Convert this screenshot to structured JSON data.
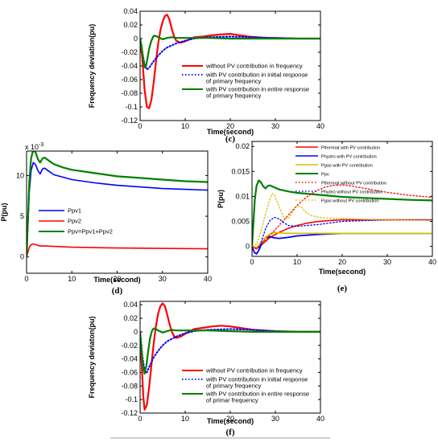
{
  "chart_data": [
    {
      "id": "c",
      "type": "line",
      "panel_label": "(c)",
      "xlabel": "Time(second)",
      "ylabel": "Frequency deviation(pu)",
      "xlim": [
        0,
        40
      ],
      "ylim": [
        -0.12,
        0.04
      ],
      "xticks": [
        0,
        10,
        20,
        30,
        40
      ],
      "yticks": [
        -0.12,
        -0.1,
        -0.08,
        -0.06,
        -0.04,
        -0.02,
        0,
        0.02,
        0.04
      ],
      "ytick_labels": [
        "-0.12",
        "-0.1",
        "-0.08",
        "-0.06",
        "-0.04",
        "-0.02",
        "0",
        "0.02",
        "0.04"
      ],
      "legend_position": "right",
      "series": [
        {
          "name": "without PV contribution in frequency",
          "color": "#ff0000",
          "style": "solid",
          "width": 2.2,
          "x": [
            0,
            0.5,
            1.0,
            1.5,
            2.0,
            2.5,
            3.0,
            3.5,
            4.0,
            4.5,
            5.0,
            5.5,
            6.0,
            6.5,
            7.0,
            7.5,
            8.0,
            9.0,
            10,
            11,
            12,
            14,
            16,
            18,
            20,
            22,
            24,
            26,
            28,
            30,
            35,
            40
          ],
          "y": [
            0,
            -0.03,
            -0.075,
            -0.1,
            -0.102,
            -0.09,
            -0.065,
            -0.035,
            -0.008,
            0.012,
            0.025,
            0.033,
            0.035,
            0.028,
            0.015,
            0.004,
            -0.003,
            -0.006,
            -0.004,
            -0.001,
            0.002,
            0.003,
            0.005,
            0.006,
            0.007,
            0.005,
            0.003,
            0.002,
            0.001,
            0.001,
            0,
            0
          ]
        },
        {
          "name": "with PV contribution in initial response of primary frequency",
          "label_lines": [
            "with PV contribution in initial response",
            "of primary frequency"
          ],
          "color": "#0000ff",
          "style": "dotted",
          "width": 2,
          "x": [
            0,
            0.5,
            1.0,
            1.5,
            2.0,
            2.5,
            3.0,
            4.0,
            5.0,
            6.0,
            8.0,
            10,
            12,
            15,
            20,
            25,
            30,
            35,
            40
          ],
          "y": [
            0,
            -0.02,
            -0.038,
            -0.045,
            -0.043,
            -0.038,
            -0.033,
            -0.025,
            -0.018,
            -0.013,
            -0.007,
            -0.003,
            0,
            0.002,
            0.003,
            0.002,
            0.001,
            0,
            0
          ]
        },
        {
          "name": "with PV contribution in entire response of primary frequency",
          "label_lines": [
            "with PV contribution in entire response",
            "of primary frequency"
          ],
          "color": "#008000",
          "style": "solid",
          "width": 2.2,
          "x": [
            0,
            0.3,
            0.7,
            1.0,
            1.3,
            1.6,
            2.0,
            2.5,
            3.0,
            3.5,
            4.0,
            5.0,
            6.0,
            7.0,
            8.0,
            10,
            12,
            15,
            20,
            25,
            30,
            40
          ],
          "y": [
            0,
            -0.01,
            -0.03,
            -0.042,
            -0.04,
            -0.03,
            -0.015,
            -0.003,
            0.004,
            0.004,
            0.002,
            -0.001,
            0.001,
            0.002,
            0.001,
            0.001,
            0.001,
            0.001,
            0,
            0,
            0,
            0
          ]
        }
      ]
    },
    {
      "id": "d",
      "type": "line",
      "panel_label": "(d)",
      "xlabel": "Time(second)",
      "ylabel": "P(pu)",
      "exponent_label": "x 10",
      "exponent_power": "-3",
      "xlim": [
        0,
        40
      ],
      "ylim": [
        -2,
        13
      ],
      "xticks": [
        0,
        10,
        20,
        30,
        40
      ],
      "yticks": [
        0,
        5,
        10
      ],
      "ytick_labels": [
        "0",
        "5",
        "10"
      ],
      "legend_position": "left",
      "series": [
        {
          "name": "Ppv1",
          "color": "#0000ff",
          "style": "solid",
          "width": 1.6,
          "x": [
            0,
            0.3,
            0.6,
            1.0,
            1.5,
            2.0,
            2.5,
            3.0,
            3.5,
            4.0,
            5.0,
            6.0,
            8.0,
            10,
            15,
            20,
            25,
            30,
            35,
            40
          ],
          "y": [
            0,
            4,
            8,
            10.6,
            11.6,
            11.3,
            10.6,
            10.2,
            10.8,
            10.9,
            10.5,
            10.1,
            9.8,
            9.5,
            9.1,
            8.8,
            8.6,
            8.4,
            8.3,
            8.2
          ]
        },
        {
          "name": "Ppv2",
          "color": "#ff0000",
          "style": "solid",
          "width": 1.6,
          "x": [
            0,
            0.3,
            0.6,
            1.0,
            1.5,
            2.0,
            3.0,
            4.0,
            6.0,
            10,
            15,
            20,
            30,
            40
          ],
          "y": [
            0,
            0.6,
            1.2,
            1.5,
            1.6,
            1.5,
            1.35,
            1.35,
            1.3,
            1.2,
            1.15,
            1.1,
            1.05,
            1.0
          ]
        },
        {
          "name": "Ppv=Ppv1+Ppv2",
          "color": "#008000",
          "style": "solid",
          "width": 2.2,
          "x": [
            0,
            0.3,
            0.6,
            1.0,
            1.5,
            2.0,
            2.5,
            3.0,
            3.5,
            4.0,
            5.0,
            6.0,
            8.0,
            10,
            15,
            20,
            25,
            30,
            35,
            40
          ],
          "y": [
            0,
            4.6,
            9.2,
            12.1,
            13.2,
            12.8,
            12.0,
            11.6,
            12.1,
            12.2,
            11.8,
            11.4,
            11.0,
            10.7,
            10.3,
            9.9,
            9.7,
            9.5,
            9.3,
            9.2
          ]
        }
      ]
    },
    {
      "id": "e",
      "type": "line",
      "panel_label": "(e)",
      "xlabel": "Time(second)",
      "ylabel": "P(pu)",
      "xlim": [
        0,
        40
      ],
      "ylim": [
        -0.002,
        0.021
      ],
      "xticks": [
        0,
        10,
        20,
        30,
        40
      ],
      "yticks": [
        0,
        0.005,
        0.01,
        0.015,
        0.02
      ],
      "ytick_labels": [
        "0",
        "0.005",
        "0.01",
        "0.015",
        "0.02"
      ],
      "legend_position": "top",
      "series": [
        {
          "name": "Pthermal with PV contribution",
          "color": "#ff0000",
          "style": "solid",
          "width": 1.6,
          "x": [
            0,
            1,
            2,
            3,
            4,
            6,
            8,
            10,
            12,
            14,
            16,
            18,
            20,
            25,
            30,
            35,
            40
          ],
          "y": [
            0,
            -0.0005,
            0.0002,
            0.001,
            0.0018,
            0.0028,
            0.0036,
            0.0042,
            0.0046,
            0.0049,
            0.0051,
            0.0052,
            0.0053,
            0.0053,
            0.0053,
            0.0053,
            0.0053
          ]
        },
        {
          "name": "Phydro with PV contribution",
          "color": "#0000ff",
          "style": "solid",
          "width": 1.8,
          "x": [
            0,
            0.5,
            1.0,
            1.5,
            2.0,
            2.5,
            3.0,
            4.0,
            5.0,
            6.0,
            8.0,
            10,
            15,
            20,
            25,
            30,
            35,
            40
          ],
          "y": [
            0,
            -0.0012,
            -0.0015,
            -0.0008,
            0.0002,
            0.0012,
            0.0018,
            0.0019,
            0.0017,
            0.0016,
            0.0018,
            0.0021,
            0.0024,
            0.0026,
            0.0026,
            0.0026,
            0.0026,
            0.0026
          ]
        },
        {
          "name": "Pgas with PV contribution",
          "color": "#d4c200",
          "style": "solid",
          "width": 1.8,
          "x": [
            0,
            1,
            2,
            3,
            4,
            5,
            6,
            8,
            10,
            15,
            20,
            25,
            30,
            40
          ],
          "y": [
            0,
            -0.0003,
            0.0008,
            0.0018,
            0.0025,
            0.0028,
            0.0027,
            0.0026,
            0.0026,
            0.0026,
            0.0026,
            0.0026,
            0.0026,
            0.0026
          ]
        },
        {
          "name": "Ppv",
          "color": "#008000",
          "style": "solid",
          "width": 2.2,
          "x": [
            0,
            0.3,
            0.6,
            1.0,
            1.5,
            2.0,
            2.5,
            3.0,
            3.5,
            4.0,
            5.0,
            6.0,
            8.0,
            10,
            15,
            20,
            25,
            30,
            35,
            40
          ],
          "y": [
            0,
            0.0046,
            0.0092,
            0.0121,
            0.0132,
            0.0128,
            0.012,
            0.0116,
            0.0121,
            0.0122,
            0.0118,
            0.0114,
            0.011,
            0.0107,
            0.0103,
            0.0099,
            0.0097,
            0.0095,
            0.0093,
            0.0092
          ]
        },
        {
          "name": "Pthermal without PV contribution",
          "color": "#ff0000",
          "style": "dotted",
          "width": 1.3,
          "x": [
            0,
            1,
            2,
            4,
            6,
            8,
            10,
            12,
            14,
            16,
            18,
            20,
            22,
            25,
            30,
            35,
            40
          ],
          "y": [
            0,
            -0.0004,
            0.0004,
            0.0022,
            0.0042,
            0.0062,
            0.0082,
            0.0098,
            0.011,
            0.0118,
            0.0122,
            0.0123,
            0.0121,
            0.0116,
            0.0108,
            0.0102,
            0.0098
          ]
        },
        {
          "name": "Phydro without PV contribution",
          "color": "#0000ff",
          "style": "dotted",
          "width": 1.3,
          "x": [
            0,
            0.5,
            1.0,
            1.5,
            2.0,
            3.0,
            4.0,
            5.0,
            6.0,
            7.0,
            8.0,
            10,
            15,
            20,
            30,
            40
          ],
          "y": [
            0,
            -0.0012,
            -0.0016,
            -0.0008,
            0.0008,
            0.0035,
            0.0052,
            0.0058,
            0.0055,
            0.0048,
            0.0042,
            0.004,
            0.0044,
            0.005,
            0.0053,
            0.0053
          ]
        },
        {
          "name": "Pgas without PV contribution",
          "color": "#d4c200",
          "style": "dotted",
          "width": 1.3,
          "x": [
            0,
            1,
            2,
            3,
            4,
            4.5,
            5,
            6,
            7,
            8,
            9,
            10,
            11,
            12,
            13,
            15,
            18,
            20,
            25,
            30,
            40
          ],
          "y": [
            0,
            0.0004,
            0.003,
            0.0065,
            0.0095,
            0.0106,
            0.0102,
            0.008,
            0.0058,
            0.0056,
            0.0068,
            0.0081,
            0.0078,
            0.0068,
            0.0062,
            0.0058,
            0.0056,
            0.0056,
            0.0054,
            0.0053,
            0.0052
          ]
        }
      ]
    },
    {
      "id": "f",
      "type": "line",
      "panel_label": "(f)",
      "xlabel": "Time(second)",
      "ylabel": "Frequency deviaton(pu)",
      "xlim": [
        0,
        40
      ],
      "ylim": [
        -0.12,
        0.045
      ],
      "xticks": [
        0,
        10,
        20,
        30,
        40
      ],
      "yticks": [
        -0.12,
        -0.1,
        -0.08,
        -0.06,
        -0.04,
        -0.02,
        0,
        0.02,
        0.04
      ],
      "ytick_labels": [
        "-0.12",
        "-0.1",
        "-0.08",
        "-0.06",
        "-0.04",
        "-0.02",
        "0",
        "0.02",
        "0.04"
      ],
      "legend_position": "right",
      "series": [
        {
          "name": "without PV contribution in frequency",
          "color": "#ff0000",
          "style": "solid",
          "width": 2.2,
          "x": [
            0,
            0.3,
            0.7,
            1.0,
            1.5,
            2.0,
            2.5,
            3.0,
            3.5,
            4.0,
            4.5,
            5.0,
            5.5,
            6.0,
            6.5,
            7.0,
            7.5,
            8.0,
            9.0,
            10,
            11,
            12,
            14,
            16,
            18,
            20,
            22,
            25,
            30,
            35,
            40
          ],
          "y": [
            0,
            -0.04,
            -0.095,
            -0.115,
            -0.108,
            -0.082,
            -0.05,
            -0.018,
            0.008,
            0.027,
            0.038,
            0.042,
            0.038,
            0.026,
            0.012,
            0.001,
            -0.006,
            -0.009,
            -0.007,
            -0.003,
            0.001,
            0.004,
            0.006,
            0.008,
            0.009,
            0.008,
            0.006,
            0.003,
            0.001,
            0,
            0
          ]
        },
        {
          "name": "with PV contribution in initial response of primary frequency",
          "label_lines": [
            "with PV contribution in initial response",
            "of primary frequency"
          ],
          "color": "#0000ff",
          "style": "dotted",
          "width": 2,
          "x": [
            0,
            0.5,
            1.0,
            1.5,
            2.0,
            3.0,
            4.0,
            5.0,
            6.0,
            8.0,
            10,
            12,
            15,
            20,
            25,
            30,
            35,
            40
          ],
          "y": [
            0,
            -0.035,
            -0.058,
            -0.06,
            -0.052,
            -0.038,
            -0.028,
            -0.02,
            -0.014,
            -0.007,
            -0.002,
            0.001,
            0.003,
            0.004,
            0.003,
            0.001,
            0,
            0
          ]
        },
        {
          "name": "with PV contribution in entire response of primar frequency",
          "label_lines": [
            "with PV contribution in entire response",
            "of primar frequency"
          ],
          "color": "#008000",
          "style": "solid",
          "width": 2.2,
          "x": [
            0,
            0.3,
            0.6,
            1.0,
            1.4,
            1.8,
            2.2,
            2.6,
            3.0,
            3.5,
            4.0,
            5.0,
            6.0,
            7.0,
            8.0,
            10,
            12,
            15,
            20,
            25,
            30,
            40
          ],
          "y": [
            0,
            -0.025,
            -0.05,
            -0.062,
            -0.05,
            -0.028,
            -0.01,
            0.001,
            0.005,
            0.004,
            0.002,
            -0.001,
            0.001,
            0.003,
            0.002,
            0.002,
            0.002,
            0.002,
            0.001,
            0,
            0,
            0
          ]
        }
      ]
    }
  ]
}
